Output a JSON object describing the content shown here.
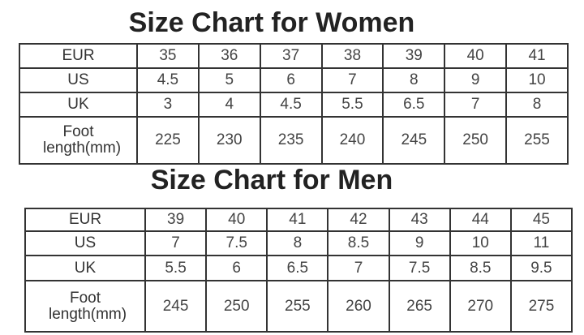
{
  "women": {
    "title": "Size Chart for Women",
    "rows": [
      {
        "label": "EUR",
        "values": [
          "35",
          "36",
          "37",
          "38",
          "39",
          "40",
          "41"
        ]
      },
      {
        "label": "US",
        "values": [
          "4.5",
          "5",
          "6",
          "7",
          "8",
          "9",
          "10"
        ]
      },
      {
        "label": "UK",
        "values": [
          "3",
          "4",
          "4.5",
          "5.5",
          "6.5",
          "7",
          "8"
        ]
      },
      {
        "label": "Foot length(mm)",
        "values": [
          "225",
          "230",
          "235",
          "240",
          "245",
          "250",
          "255"
        ]
      }
    ]
  },
  "men": {
    "title": "Size Chart for Men",
    "rows": [
      {
        "label": "EUR",
        "values": [
          "39",
          "40",
          "41",
          "42",
          "43",
          "44",
          "45"
        ]
      },
      {
        "label": "US",
        "values": [
          "7",
          "7.5",
          "8",
          "8.5",
          "9",
          "10",
          "11"
        ]
      },
      {
        "label": "UK",
        "values": [
          "5.5",
          "6",
          "6.5",
          "7",
          "7.5",
          "8.5",
          "9.5"
        ]
      },
      {
        "label": "Foot length(mm)",
        "values": [
          "245",
          "250",
          "255",
          "260",
          "265",
          "270",
          "275"
        ]
      }
    ]
  }
}
